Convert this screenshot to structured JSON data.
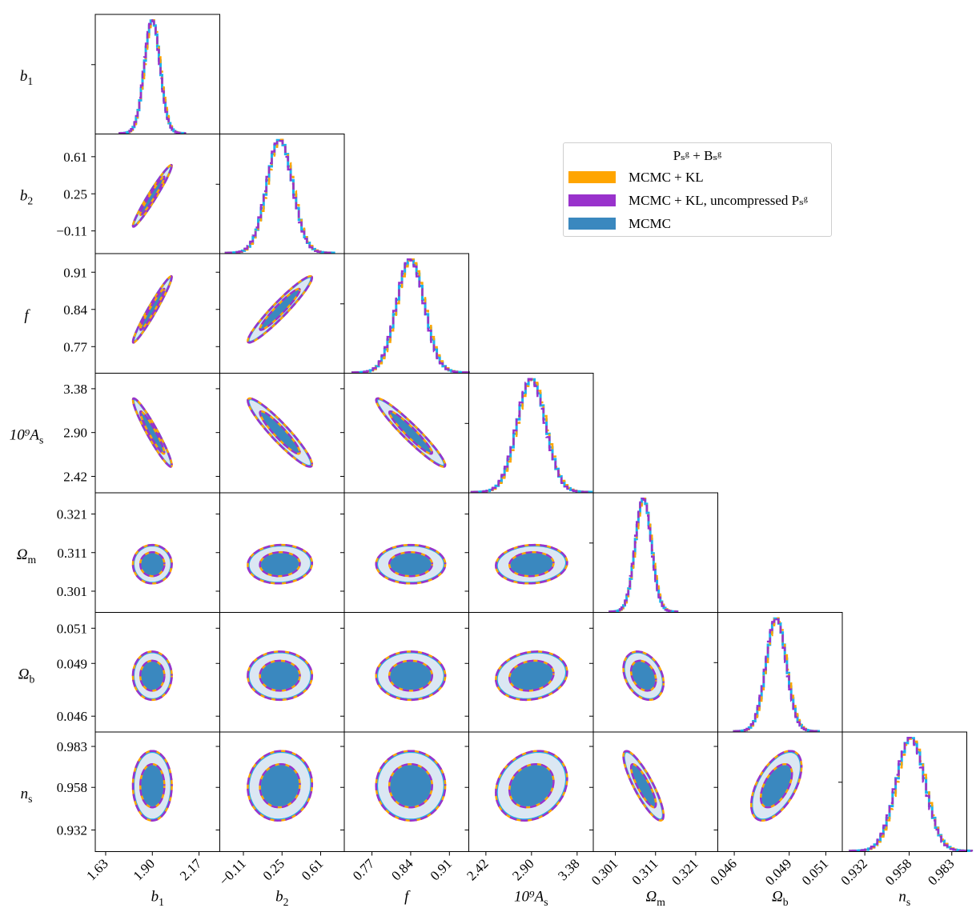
{
  "chart_data": {
    "type": "corner",
    "parameters": [
      {
        "key": "b1",
        "symbol": "b",
        "subscript": "1",
        "center": 1.9,
        "sigma": 0.045,
        "ticks": [
          "1.63",
          "1.90",
          "2.17"
        ],
        "tick_values": [
          1.63,
          1.9,
          2.17
        ],
        "range": [
          1.57,
          2.29
        ]
      },
      {
        "key": "b2",
        "symbol": "b",
        "subscript": "2",
        "center": 0.23,
        "sigma": 0.12,
        "ticks": [
          "−0.11",
          "0.25",
          "0.61"
        ],
        "tick_values": [
          -0.11,
          0.25,
          0.61
        ],
        "range": [
          -0.33,
          0.83
        ]
      },
      {
        "key": "f",
        "symbol": "f",
        "subscript": "",
        "center": 0.84,
        "sigma": 0.025,
        "ticks": [
          "0.77",
          "0.84",
          "0.91"
        ],
        "tick_values": [
          0.77,
          0.84,
          0.91
        ],
        "range": [
          0.72,
          0.945
        ]
      },
      {
        "key": "As",
        "symbol": "10⁹A",
        "subscript": "s",
        "center": 2.9,
        "sigma": 0.15,
        "ticks": [
          "2.42",
          "2.90",
          "3.38"
        ],
        "tick_values": [
          2.42,
          2.9,
          3.38
        ],
        "range": [
          2.24,
          3.55
        ]
      },
      {
        "key": "Om",
        "symbol": "Ω",
        "subscript": "m",
        "center": 0.308,
        "sigma": 0.002,
        "ticks": [
          "0.301",
          "0.311",
          "0.321"
        ],
        "tick_values": [
          0.301,
          0.311,
          0.321
        ],
        "range": [
          0.2955,
          0.3265
        ]
      },
      {
        "key": "Ob",
        "symbol": "Ω",
        "subscript": "b",
        "center": 0.0483,
        "sigma": 0.00055,
        "ticks": [
          "0.046",
          "0.049",
          "0.051"
        ],
        "tick_values": [
          0.046,
          0.049,
          0.051
        ],
        "range": [
          0.0451,
          0.0519
        ]
      },
      {
        "key": "ns",
        "symbol": "n",
        "subscript": "s",
        "center": 0.959,
        "sigma": 0.0085,
        "ticks": [
          "0.932",
          "0.958",
          "0.983"
        ],
        "tick_values": [
          0.932,
          0.958,
          0.983
        ],
        "range": [
          0.9188,
          0.9918
        ]
      }
    ],
    "correlations": [
      [
        1,
        0.97,
        0.97,
        -0.95,
        0,
        0,
        0
      ],
      [
        0.97,
        1,
        0.95,
        -0.93,
        0.05,
        0,
        0.05
      ],
      [
        0.97,
        0.95,
        1,
        -0.95,
        0,
        0,
        0
      ],
      [
        -0.95,
        -0.93,
        -0.95,
        1,
        0.08,
        0.15,
        0.2
      ],
      [
        0,
        0.05,
        0,
        0.08,
        1,
        -0.3,
        -0.85
      ],
      [
        0,
        0,
        0,
        0.15,
        -0.3,
        1,
        0.55
      ],
      [
        0,
        0.05,
        0,
        0.2,
        -0.85,
        0.55,
        1
      ]
    ],
    "contour_levels": [
      "68%",
      "95%"
    ],
    "series": [
      {
        "name": "MCMC + KL",
        "color": "#ffa500",
        "style": "dashed"
      },
      {
        "name": "MCMC + KL, uncompressed Pₛᵍ",
        "color": "#9932cc",
        "style": "dashed"
      },
      {
        "name": "MCMC",
        "color": "#3a88bf",
        "style": "filled"
      }
    ],
    "legend": {
      "title": "Pₛᵍ + Bₛᵍ",
      "location": "upper-right",
      "entries": [
        "MCMC + KL",
        "MCMC + KL, uncompressed Pₛᵍ",
        "MCMC"
      ]
    },
    "colors": {
      "filled_inner": "#3a88bf",
      "filled_outer": "#dbe7f3",
      "outline": "#1ab2ee",
      "kl": "#ffa500",
      "uncompressed": "#9932cc"
    }
  }
}
